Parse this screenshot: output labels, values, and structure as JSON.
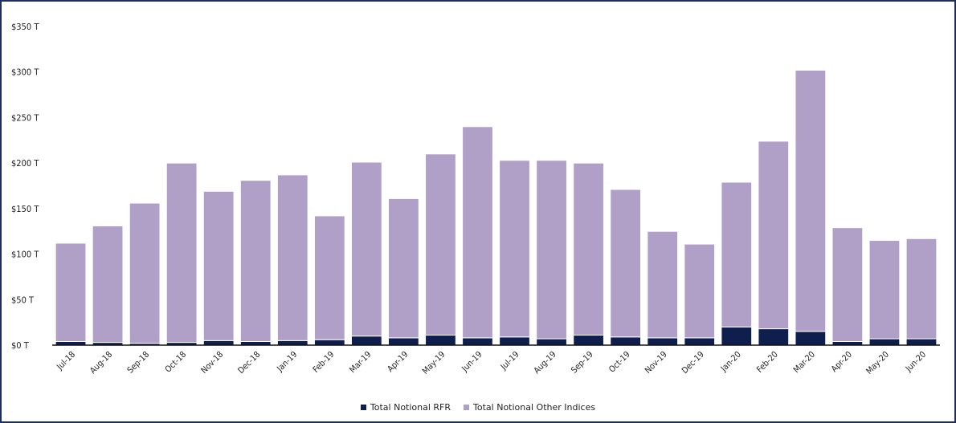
{
  "chart_data": {
    "type": "bar",
    "stacked": true,
    "categories": [
      "Jul-18",
      "Aug-18",
      "Sep-18",
      "Oct-18",
      "Nov-18",
      "Dec-18",
      "Jan-19",
      "Feb-19",
      "Mar-19",
      "Apr-19",
      "May-19",
      "Jun-19",
      "Jul-19",
      "Aug-19",
      "Sep-19",
      "Oct-19",
      "Nov-19",
      "Dec-19",
      "Jan-20",
      "Feb-20",
      "Mar-20",
      "Apr-20",
      "May-20",
      "Jun-20"
    ],
    "series": [
      {
        "name": "Total Notional RFR",
        "color": "#0e1f4d",
        "values": [
          4,
          3,
          2,
          3,
          5,
          4,
          5,
          6,
          10,
          8,
          11,
          8,
          9,
          7,
          11,
          9,
          8,
          8,
          20,
          18,
          15,
          4,
          7,
          7
        ]
      },
      {
        "name": "Total Notional Other Indices",
        "color": "#b09fc6",
        "values": [
          108,
          128,
          154,
          197,
          164,
          177,
          182,
          136,
          191,
          153,
          199,
          232,
          194,
          196,
          189,
          162,
          117,
          103,
          159,
          206,
          287,
          125,
          108,
          110
        ]
      }
    ],
    "y_ticks": [
      "$0 T",
      "$50 T",
      "$100 T",
      "$150 T",
      "$200 T",
      "$250 T",
      "$300 T",
      "$350 T"
    ],
    "ylim": [
      0,
      350
    ],
    "grid": false,
    "legend_position": "bottom"
  }
}
